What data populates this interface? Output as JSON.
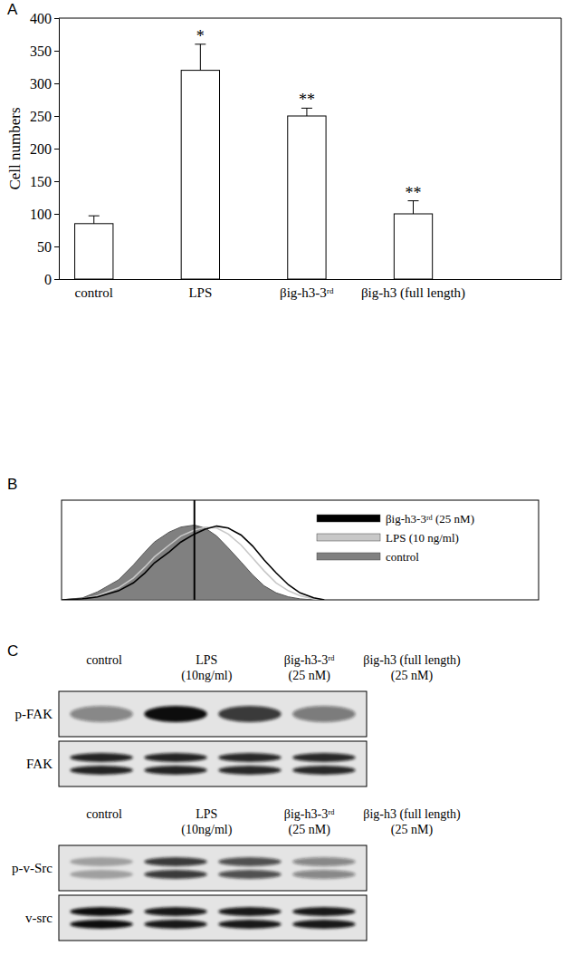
{
  "panel_labels": [
    "A",
    "B",
    "C"
  ],
  "chart_data": [
    {
      "type": "bar",
      "y_label": "Cell numbers",
      "categories": [
        "control",
        "LPS",
        "βig-h3-3ʳᵈ",
        "βig-h3 (full length)"
      ],
      "values": [
        85,
        320,
        250,
        100
      ],
      "errors": [
        12,
        40,
        12,
        20
      ],
      "annotations": [
        null,
        "*",
        "**",
        "**"
      ],
      "color": "#ffffff",
      "ylim": [
        0,
        400
      ],
      "yticks": [
        0,
        50,
        100,
        150,
        200,
        250,
        300,
        350,
        400
      ],
      "grid": false
    },
    {
      "type": "line",
      "log": "x",
      "tick_labels": false,
      "legend": "right",
      "xlim": [
        1,
        10000
      ],
      "ylim": [
        0,
        100
      ],
      "reference_line": 13,
      "x": [
        1,
        1.5,
        2,
        3,
        4,
        5,
        6,
        8,
        10,
        13,
        16,
        20,
        25,
        32,
        40,
        50,
        63,
        80,
        100,
        130,
        160
      ],
      "series": [
        {
          "name": "βig-h3-3ʳᵈ (25 nM)",
          "color": "#000000",
          "type": "line",
          "values": [
            0,
            1,
            3,
            9,
            17,
            27,
            37,
            48,
            58,
            66,
            71,
            74,
            72,
            65,
            54,
            40,
            27,
            15,
            7,
            2,
            0
          ]
        },
        {
          "name": "LPS (10 ng/ml)",
          "color": "#c8c8c8",
          "type": "line",
          "values": [
            0,
            1,
            4,
            12,
            22,
            33,
            43,
            55,
            64,
            70,
            73,
            72,
            66,
            55,
            42,
            29,
            17,
            9,
            4,
            1,
            0
          ]
        },
        {
          "name": "control",
          "color": "#808080",
          "type": "area",
          "values": [
            0,
            2,
            8,
            20,
            35,
            48,
            58,
            68,
            73,
            75,
            72,
            64,
            52,
            38,
            25,
            14,
            7,
            3,
            1,
            0,
            0
          ]
        }
      ]
    }
  ],
  "blots": [
    {
      "lanes": [
        [
          "control"
        ],
        [
          "LPS",
          "(10ng/ml)"
        ],
        [
          "βig-h3-3ʳᵈ",
          "(25 nM)"
        ],
        [
          "βig-h3 (full length)",
          "(25 nM)"
        ]
      ],
      "rows": [
        {
          "label": "p-FAK",
          "marker": "band",
          "values": [
            0.45,
            1.0,
            0.8,
            0.5
          ]
        },
        {
          "label": "FAK",
          "marker": "doublet",
          "values": [
            0.9,
            0.9,
            0.88,
            0.88
          ]
        }
      ]
    },
    {
      "lanes": [
        [
          "control"
        ],
        [
          "LPS",
          "(10ng/ml)"
        ],
        [
          "βig-h3-3ʳᵈ",
          "(25 nM)"
        ],
        [
          "βig-h3 (full length)",
          "(25 nM)"
        ]
      ],
      "rows": [
        {
          "label": "p-v-Src",
          "marker": "doublet",
          "values": [
            0.3,
            0.8,
            0.7,
            0.45
          ]
        },
        {
          "label": "v-src",
          "marker": "doublet",
          "values": [
            1.0,
            0.95,
            0.95,
            0.95
          ]
        }
      ]
    }
  ]
}
